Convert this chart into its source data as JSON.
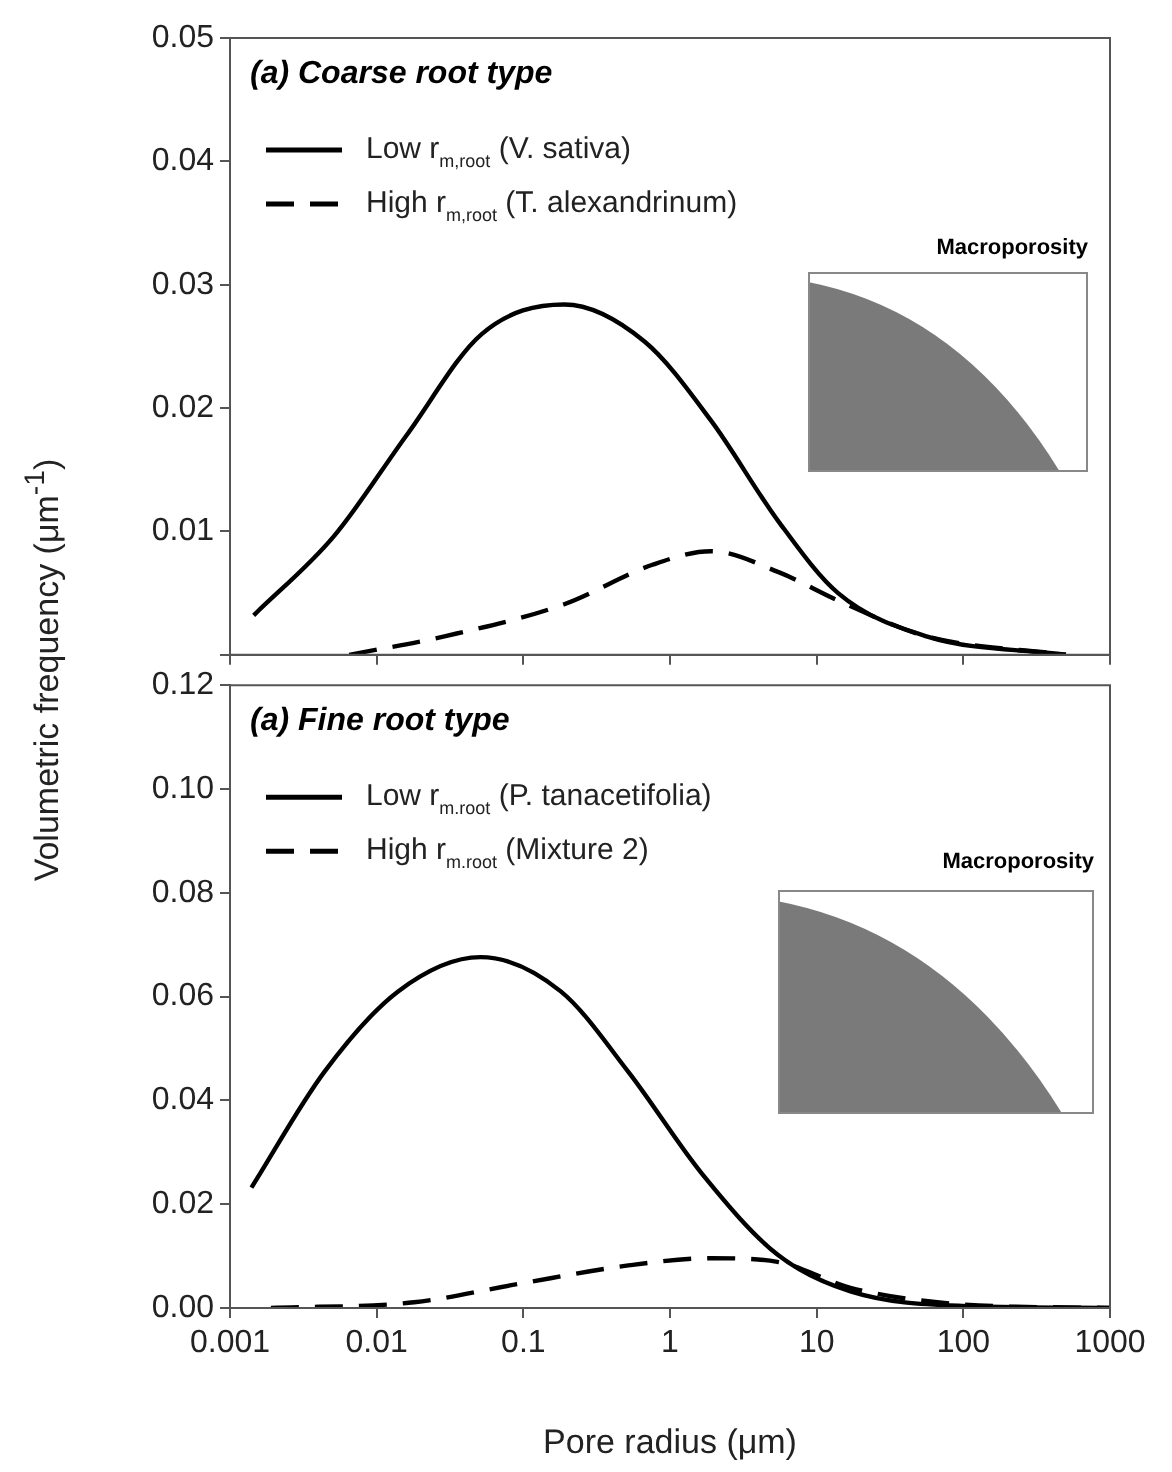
{
  "chart_data": [
    {
      "type": "line",
      "title": "(a) Coarse root type",
      "annotations": [
        "Macroporosity"
      ],
      "log": "x",
      "xlim": [
        0.001,
        1000
      ],
      "xticks": [
        0.001,
        0.01,
        0.1,
        1,
        10,
        100,
        1000
      ],
      "ylim": [
        0,
        0.05
      ],
      "yticks": [
        {
          "value": 0,
          "label": null
        },
        0.01,
        0.02,
        0.03,
        0.04,
        0.05
      ],
      "tick_labels": "y",
      "legend": "top left",
      "marker": "none",
      "series": [
        {
          "name": "Low r$_{m,root}$ (V. sativa)",
          "color": "#000000",
          "line_style": "solid",
          "x": [
            0.00145,
            0.0051,
            0.016,
            0.052,
            0.19,
            0.67,
            1.9,
            5.5,
            14,
            56,
            500
          ],
          "values": [
            0.0032,
            0.0096,
            0.0178,
            0.026,
            0.0284,
            0.0254,
            0.019,
            0.0108,
            0.005,
            0.0015,
            0
          ]
        },
        {
          "name": "High r$_{m,root}$ (T. alexandrinum)",
          "color": "#000000",
          "line_style": "dashed",
          "x": [
            0.0065,
            0.029,
            0.19,
            0.76,
            1.9,
            5.5,
            14,
            56,
            500
          ],
          "values": [
            0,
            0.0015,
            0.0041,
            0.0073,
            0.0084,
            0.0067,
            0.0044,
            0.0015,
            0
          ]
        }
      ]
    },
    {
      "type": "line",
      "title": "(a) Fine root type",
      "annotations": [
        "Macroporosity"
      ],
      "xlabel": "Pore radius (μm)",
      "ylabel": "Volumetric frequency (μm$^{-1}$)",
      "log": "x",
      "xlim": [
        0.001,
        1000
      ],
      "xticks": [
        0.001,
        0.01,
        0.1,
        1,
        10,
        100,
        1000
      ],
      "ylim": [
        0,
        0.12
      ],
      "yticks": [
        {
          "value": 0,
          "label": "0.00"
        },
        {
          "value": 0.02,
          "label": "0.02"
        },
        {
          "value": 0.04,
          "label": "0.04"
        },
        {
          "value": 0.06,
          "label": "0.06"
        },
        {
          "value": 0.08,
          "label": "0.08"
        },
        {
          "value": 0.1,
          "label": "0.10"
        },
        {
          "value": 0.12,
          "label": "0.12"
        }
      ],
      "legend": "top left",
      "marker": "none",
      "series": [
        {
          "name": "Low r$_{m.root}$ (P. tanacetifolia)",
          "color": "#000000",
          "line_style": "solid",
          "x": [
            0.0014,
            0.0044,
            0.014,
            0.051,
            0.18,
            0.52,
            1.66,
            5.4,
            17,
            98,
            1000
          ],
          "values": [
            0.0232,
            0.0455,
            0.061,
            0.0676,
            0.061,
            0.0455,
            0.0258,
            0.0103,
            0.0032,
            0.0004,
            0
          ]
        },
        {
          "name": "High r$_{m.root}$ (Mixture 2)",
          "color": "#000000",
          "line_style": "dashed",
          "x": [
            0.0019,
            0.018,
            0.091,
            0.52,
            1.9,
            5.4,
            17,
            98,
            1000
          ],
          "values": [
            0,
            0.0011,
            0.0046,
            0.0082,
            0.0096,
            0.0089,
            0.0039,
            0.0007,
            0
          ]
        }
      ]
    }
  ]
}
